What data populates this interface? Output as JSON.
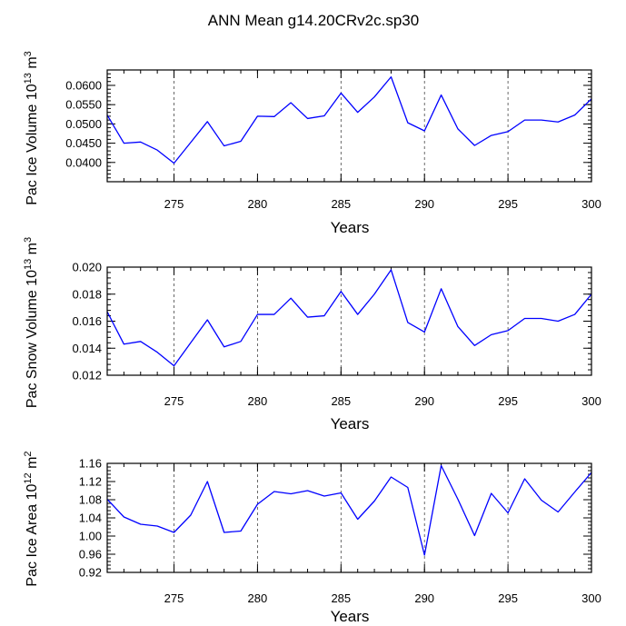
{
  "chart_data": [
    {
      "type": "line",
      "title": "ANN Mean g14.20CRv2c.sp30",
      "ylabel_parts": {
        "prefix": "Pac Ice Volume 10",
        "exponent": "13",
        "unit": "m",
        "unit_exp": "3"
      },
      "xlabel": "Years",
      "xlim": [
        271,
        300
      ],
      "ylim": [
        0.035,
        0.064
      ],
      "xticks": [
        275,
        280,
        285,
        290,
        295,
        300
      ],
      "xtick_labels": [
        "275",
        "280",
        "285",
        "290",
        "295",
        "300"
      ],
      "yticks": [
        0.04,
        0.045,
        0.05,
        0.055,
        0.06
      ],
      "ytick_labels": [
        "0.0400",
        "0.0450",
        "0.0500",
        "0.0550",
        "0.0600"
      ],
      "grid_x": [
        275,
        285,
        290,
        295
      ],
      "x": [
        271,
        272,
        273,
        274,
        275,
        276,
        277,
        278,
        279,
        280,
        281,
        282,
        283,
        284,
        285,
        286,
        287,
        288,
        289,
        290,
        291,
        292,
        293,
        294,
        295,
        296,
        297,
        298,
        299,
        300
      ],
      "series": [
        {
          "name": "Pac Ice Volume",
          "color": "#0000ff",
          "values": [
            0.0523,
            0.045,
            0.0453,
            0.0432,
            0.0398,
            0.0452,
            0.0506,
            0.0443,
            0.0455,
            0.052,
            0.0519,
            0.0555,
            0.0514,
            0.0521,
            0.058,
            0.053,
            0.057,
            0.0622,
            0.0503,
            0.0482,
            0.0575,
            0.0487,
            0.0444,
            0.047,
            0.048,
            0.051,
            0.051,
            0.0505,
            0.0523,
            0.0565
          ]
        }
      ]
    },
    {
      "type": "line",
      "ylabel_parts": {
        "prefix": "Pac Snow Volume 10",
        "exponent": "13",
        "unit": "m",
        "unit_exp": "3"
      },
      "xlabel": "Years",
      "xlim": [
        271,
        300
      ],
      "ylim": [
        0.012,
        0.02
      ],
      "xticks": [
        275,
        280,
        285,
        290,
        295,
        300
      ],
      "xtick_labels": [
        "275",
        "280",
        "285",
        "290",
        "295",
        "300"
      ],
      "yticks": [
        0.012,
        0.014,
        0.016,
        0.018,
        0.02
      ],
      "ytick_labels": [
        "0.012",
        "0.014",
        "0.016",
        "0.018",
        "0.020"
      ],
      "grid_x": [
        275,
        280,
        285,
        290,
        295
      ],
      "x": [
        271,
        272,
        273,
        274,
        275,
        276,
        277,
        278,
        279,
        280,
        281,
        282,
        283,
        284,
        285,
        286,
        287,
        288,
        289,
        290,
        291,
        292,
        293,
        294,
        295,
        296,
        297,
        298,
        299,
        300
      ],
      "series": [
        {
          "name": "Pac Snow Volume",
          "color": "#0000ff",
          "values": [
            0.0167,
            0.0143,
            0.0145,
            0.0137,
            0.0127,
            0.0144,
            0.0161,
            0.0141,
            0.0145,
            0.0165,
            0.0165,
            0.0177,
            0.0163,
            0.0164,
            0.0182,
            0.0165,
            0.018,
            0.0198,
            0.0159,
            0.0152,
            0.0184,
            0.0156,
            0.0142,
            0.015,
            0.0153,
            0.0162,
            0.0162,
            0.016,
            0.0165,
            0.018
          ]
        }
      ]
    },
    {
      "type": "line",
      "ylabel_parts": {
        "prefix": "Pac Ice Area 10",
        "exponent": "12",
        "unit": "m",
        "unit_exp": "2"
      },
      "xlabel": "Years",
      "xlim": [
        271,
        300
      ],
      "ylim": [
        0.92,
        1.16
      ],
      "xticks": [
        275,
        280,
        285,
        290,
        295,
        300
      ],
      "xtick_labels": [
        "275",
        "280",
        "285",
        "290",
        "295",
        "300"
      ],
      "yticks": [
        0.92,
        0.96,
        1.0,
        1.04,
        1.08,
        1.12,
        1.16
      ],
      "ytick_labels": [
        "0.92",
        "0.96",
        "1.00",
        "1.04",
        "1.08",
        "1.12",
        "1.16"
      ],
      "grid_x": [
        275,
        280,
        285,
        290,
        295
      ],
      "x": [
        271,
        272,
        273,
        274,
        275,
        276,
        277,
        278,
        279,
        280,
        281,
        282,
        283,
        284,
        285,
        286,
        287,
        288,
        289,
        290,
        291,
        292,
        293,
        294,
        295,
        296,
        297,
        298,
        299,
        300
      ],
      "series": [
        {
          "name": "Pac Ice Area",
          "color": "#0000ff",
          "values": [
            1.081,
            1.042,
            1.026,
            1.022,
            1.008,
            1.046,
            1.12,
            1.008,
            1.011,
            1.07,
            1.098,
            1.093,
            1.1,
            1.088,
            1.095,
            1.037,
            1.077,
            1.13,
            1.107,
            0.958,
            1.155,
            1.081,
            1.001,
            1.094,
            1.051,
            1.126,
            1.079,
            1.053,
            1.097,
            1.14
          ]
        }
      ]
    }
  ]
}
